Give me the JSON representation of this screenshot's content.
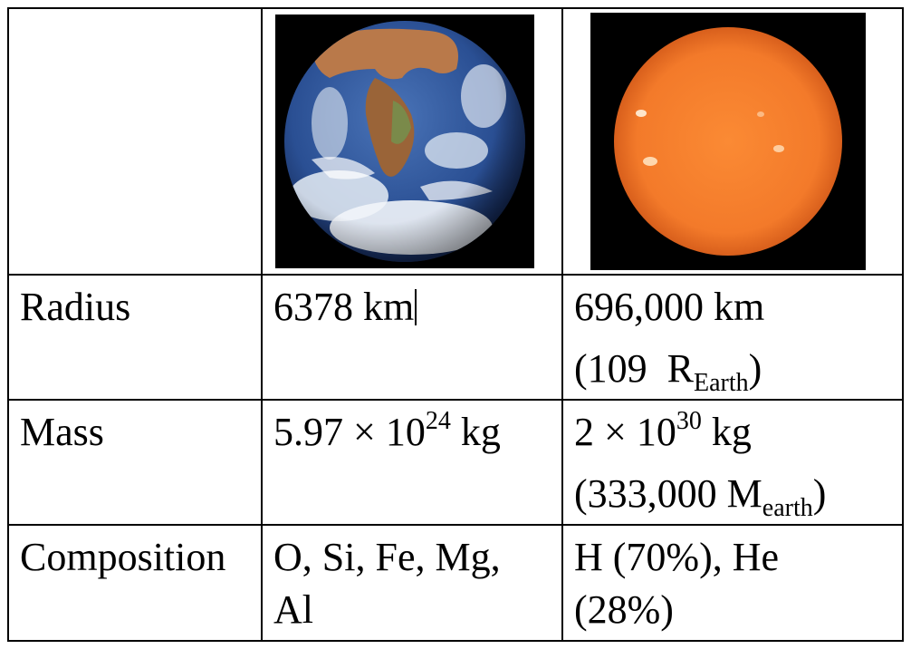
{
  "table": {
    "rows": [
      {
        "label": "Radius",
        "earth": {
          "text": "6378 km",
          "lines": []
        },
        "sun": {
          "line1": "696,000 km",
          "line2_pre": "(109  R",
          "line2_sub": "Earth",
          "line2_post": ")"
        }
      },
      {
        "label": "Mass",
        "earth": {
          "mantissa": "5.97 × 10",
          "exponent": "24",
          "unit": " kg"
        },
        "sun": {
          "mantissa": "2 × 10",
          "exponent": "30",
          "unit": " kg",
          "line2_pre": "(333,000 M",
          "line2_sub": "earth",
          "line2_post": ")"
        }
      },
      {
        "label": "Composition",
        "earth": {
          "line1": "O, Si, Fe, Mg,",
          "line2": "Al"
        },
        "sun": {
          "line1": "H (70%), He",
          "line2": "(28%)"
        }
      }
    ],
    "images": {
      "earth": {
        "icon": "earth-photo"
      },
      "sun": {
        "icon": "sun-photo"
      }
    },
    "colors": {
      "border": "#000000",
      "sun_surface": "#f37a2a",
      "earth_ocean": "#2a4f93"
    }
  }
}
